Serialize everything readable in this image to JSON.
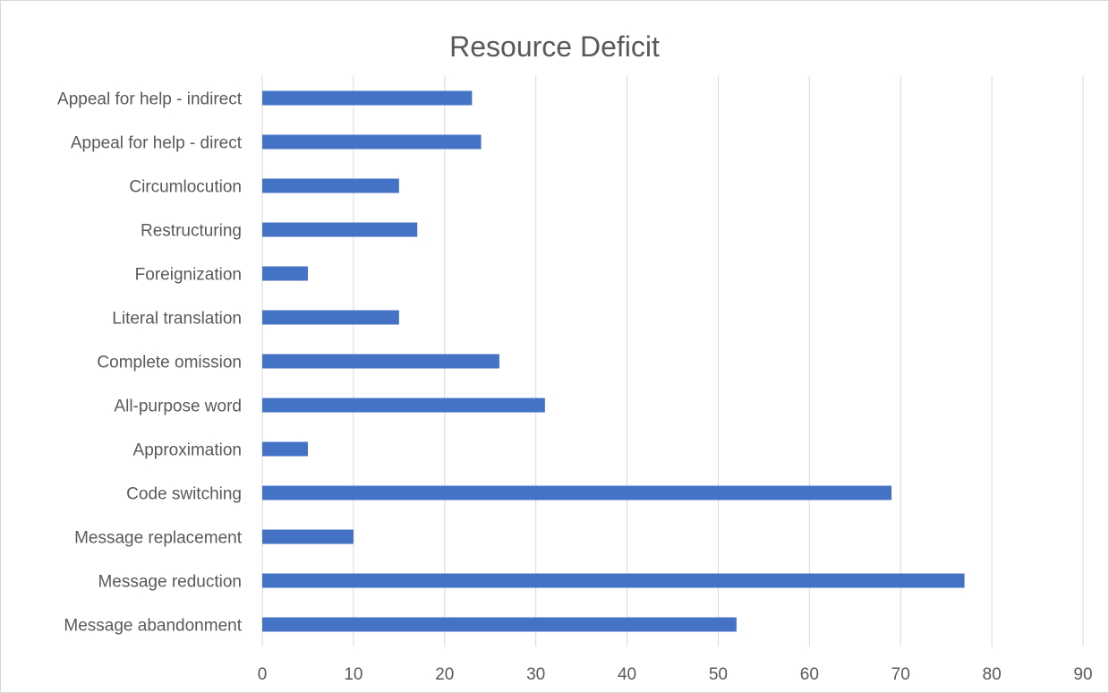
{
  "chart_data": {
    "type": "bar",
    "orientation": "horizontal",
    "title": "Resource Deficit",
    "xlabel": "",
    "ylabel": "",
    "categories": [
      "Message abandonment",
      "Message reduction",
      "Message replacement",
      "Code switching",
      "Approximation",
      "All-purpose word",
      "Complete omission",
      "Literal translation",
      "Foreignization",
      "Restructuring",
      "Circumlocution",
      "Appeal for help - direct",
      "Appeal for help - indirect"
    ],
    "values": [
      52,
      77,
      10,
      69,
      5,
      31,
      26,
      15,
      5,
      17,
      15,
      24,
      23
    ],
    "xlim": [
      0,
      90
    ],
    "xticks": [
      0,
      10,
      20,
      30,
      40,
      50,
      60,
      70,
      80,
      90
    ],
    "grid": true,
    "legend": "none",
    "bar_color": "#4472c4",
    "grid_color": "#d9d9d9"
  }
}
